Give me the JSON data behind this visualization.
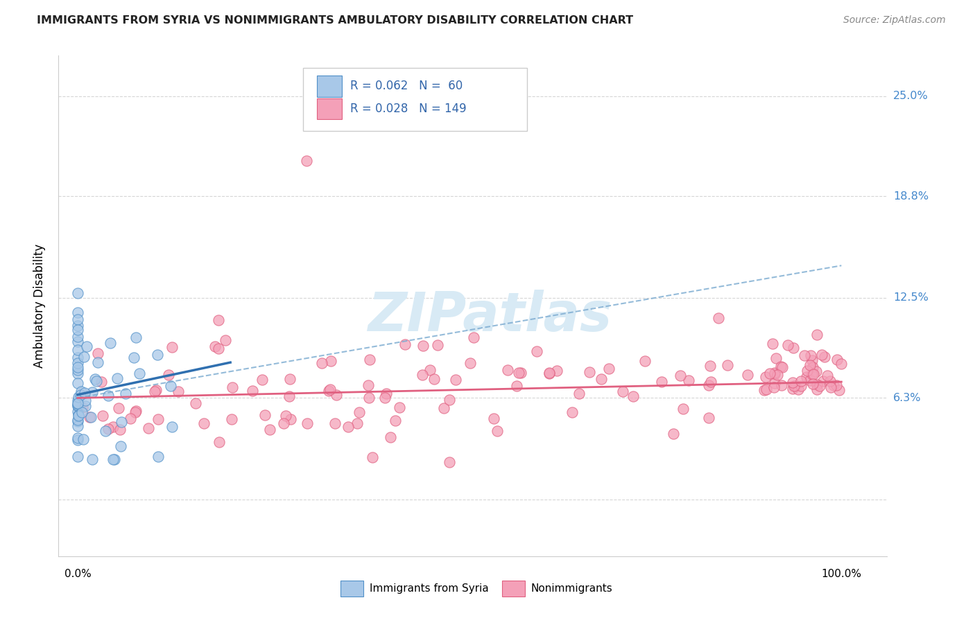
{
  "title": "IMMIGRANTS FROM SYRIA VS NONIMMIGRANTS AMBULATORY DISABILITY CORRELATION CHART",
  "source": "Source: ZipAtlas.com",
  "ylabel": "Ambulatory Disability",
  "ytick_vals": [
    0.0,
    0.063,
    0.125,
    0.188,
    0.25
  ],
  "ytick_labels": [
    "",
    "6.3%",
    "12.5%",
    "18.8%",
    "25.0%"
  ],
  "xlim": [
    -0.025,
    1.06
  ],
  "ylim": [
    -0.035,
    0.275
  ],
  "legend_label1": "Immigrants from Syria",
  "legend_label2": "Nonimmigrants",
  "color_blue": "#A8C8E8",
  "color_pink": "#F4A0B8",
  "edge_blue": "#5090C8",
  "edge_pink": "#E06080",
  "trend_blue_solid": "#3070B0",
  "trend_blue_dash": "#7AAAD0",
  "trend_pink": "#E06080",
  "watermark_text": "ZIPatlas",
  "watermark_color": "#D8EAF5",
  "grid_color": "#CCCCCC",
  "bg_color": "#FFFFFF",
  "title_color": "#222222",
  "source_color": "#888888",
  "axis_label_color": "#4488CC",
  "legend_text_color": "#3366AA"
}
